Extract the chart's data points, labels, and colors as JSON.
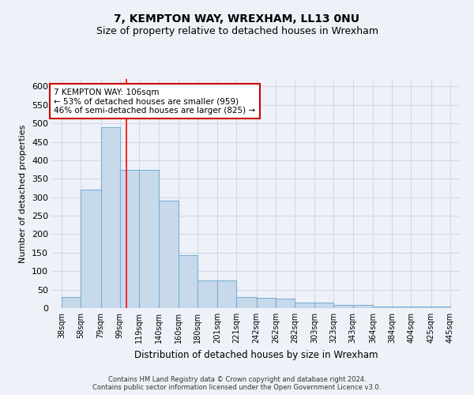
{
  "title": "7, KEMPTON WAY, WREXHAM, LL13 0NU",
  "subtitle": "Size of property relative to detached houses in Wrexham",
  "xlabel": "Distribution of detached houses by size in Wrexham",
  "ylabel": "Number of detached properties",
  "bar_left_edges": [
    38,
    58,
    79,
    99,
    119,
    140,
    160,
    180,
    201,
    221,
    242,
    262,
    282,
    303,
    323,
    343,
    364,
    384,
    404,
    425
  ],
  "bar_widths": [
    20,
    21,
    20,
    20,
    21,
    20,
    20,
    21,
    20,
    21,
    20,
    20,
    21,
    20,
    20,
    21,
    20,
    20,
    21,
    20
  ],
  "bar_heights": [
    30,
    320,
    490,
    375,
    375,
    290,
    143,
    75,
    75,
    30,
    27,
    25,
    15,
    15,
    8,
    8,
    5,
    5,
    4,
    5
  ],
  "xtick_labels": [
    "38sqm",
    "58sqm",
    "79sqm",
    "99sqm",
    "119sqm",
    "140sqm",
    "160sqm",
    "180sqm",
    "201sqm",
    "221sqm",
    "242sqm",
    "262sqm",
    "282sqm",
    "303sqm",
    "323sqm",
    "343sqm",
    "364sqm",
    "384sqm",
    "404sqm",
    "425sqm",
    "445sqm"
  ],
  "xtick_positions": [
    38,
    58,
    79,
    99,
    119,
    140,
    160,
    180,
    201,
    221,
    242,
    262,
    282,
    303,
    323,
    343,
    364,
    384,
    404,
    425,
    445
  ],
  "ylim": [
    0,
    620
  ],
  "xlim": [
    28,
    455
  ],
  "bar_color": "#c9d9ec",
  "bar_edge_color": "#7bafd4",
  "grid_color": "#d0d8e8",
  "background_color": "#eef2f8",
  "red_line_x": 106,
  "annotation_text": "7 KEMPTON WAY: 106sqm\n← 53% of detached houses are smaller (959)\n46% of semi-detached houses are larger (825) →",
  "annotation_box_color": "#ffffff",
  "annotation_border_color": "#cc0000",
  "footer_line1": "Contains HM Land Registry data © Crown copyright and database right 2024.",
  "footer_line2": "Contains public sector information licensed under the Open Government Licence v3.0.",
  "title_fontsize": 10,
  "subtitle_fontsize": 9,
  "ytick_values": [
    0,
    50,
    100,
    150,
    200,
    250,
    300,
    350,
    400,
    450,
    500,
    550,
    600
  ]
}
